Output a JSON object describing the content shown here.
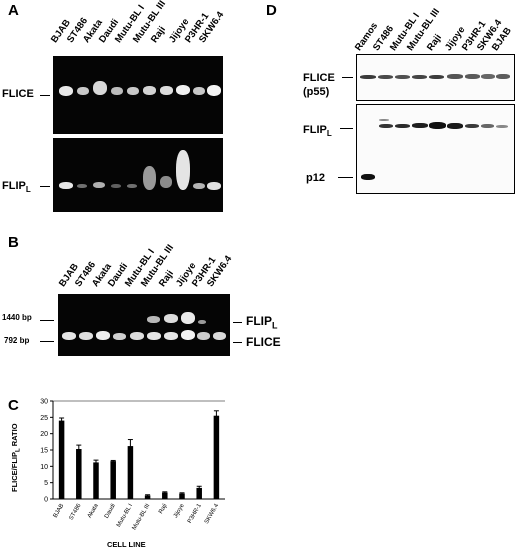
{
  "panels": {
    "a": "A",
    "b": "B",
    "c": "C",
    "d": "D"
  },
  "panel_a": {
    "lanes": [
      "BJAB",
      "ST486",
      "Akata",
      "Daudi",
      "Mutu-BL I",
      "Mutu-BL III",
      "Raji",
      "Jijoye",
      "P3HR-1",
      "SKW6.4"
    ],
    "top_label": "FLICE",
    "bottom_label_main": "FLIP",
    "bottom_label_sub": "L"
  },
  "panel_b": {
    "lanes": [
      "BJAB",
      "ST486",
      "Akata",
      "Daudi",
      "Mutu-BL I",
      "Mutu-BL III",
      "Raji",
      "Jijoye",
      "P3HR-1",
      "SKW6.4"
    ],
    "size_upper": "1440 bp",
    "size_lower": "792 bp",
    "label_upper_main": "FLIP",
    "label_upper_sub": "L",
    "label_lower": "FLICE"
  },
  "panel_d": {
    "lanes": [
      "Ramos",
      "ST486",
      "Mutu-BL I",
      "Mutu-BL III",
      "Raji",
      "Jijoye",
      "P3HR-1",
      "SKW6.4",
      "BJAB"
    ],
    "top_label_line1": "FLICE",
    "top_label_line2": "(p55)",
    "flip_label_main": "FLIP",
    "flip_label_sub": "L",
    "p12_label": "p12"
  },
  "chart_data": {
    "type": "bar",
    "ylabel": "FLICE/FLIP",
    "ylabel_sub": "L",
    "ylabel_suffix": " RATIO",
    "xlabel": "CELL LINE",
    "categories": [
      "BJAB",
      "ST486",
      "Akata",
      "Daudi",
      "Mutu-BL I",
      "Mutu-BL III",
      "Raji",
      "Jijoye",
      "P3HR-1",
      "SKW6.4"
    ],
    "values": [
      24,
      15.3,
      11.2,
      11.6,
      16.2,
      1.1,
      2.0,
      1.7,
      3.4,
      25.5
    ],
    "errors": [
      0.8,
      1.2,
      0.7,
      0.2,
      2.0,
      0.2,
      0.2,
      0.2,
      0.5,
      1.5
    ],
    "ylim": [
      0,
      30
    ],
    "yticks": [
      0,
      5,
      10,
      15,
      20,
      25,
      30
    ],
    "grid": false
  }
}
